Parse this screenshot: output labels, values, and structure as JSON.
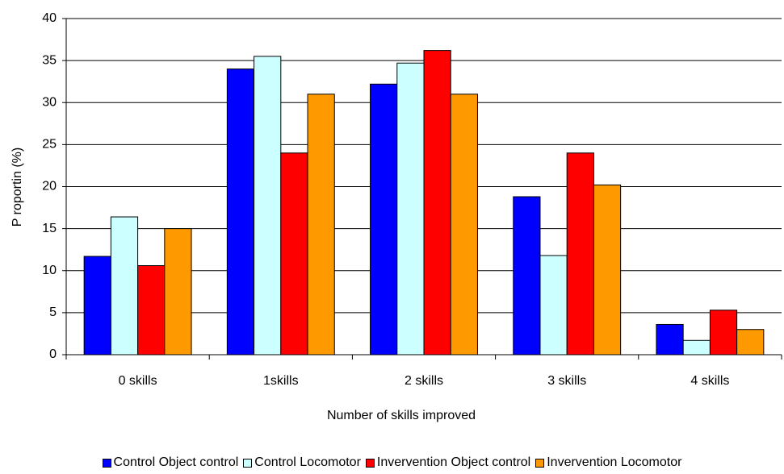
{
  "chart_data": {
    "type": "bar",
    "x_label": "Number of skills improved",
    "y_label": "P roportin (%)",
    "categories": [
      "0 skills",
      "1skills",
      "2 skills",
      "3 skills",
      "4 skills"
    ],
    "series": [
      {
        "name": "Control Object control",
        "color": "#0000ff",
        "values": [
          11.7,
          34.0,
          32.2,
          18.8,
          3.6
        ]
      },
      {
        "name": "Control Locomotor",
        "color": "#ccffff",
        "values": [
          16.4,
          35.5,
          34.7,
          11.8,
          1.7
        ]
      },
      {
        "name": "Invervention Object control",
        "color": "#ff0000",
        "values": [
          10.6,
          24.0,
          36.2,
          24.0,
          5.3
        ]
      },
      {
        "name": "Invervention Locomotor",
        "color": "#ff9900",
        "values": [
          15.0,
          31.0,
          31.0,
          20.2,
          3.0
        ]
      }
    ],
    "ylim": [
      0,
      40
    ],
    "yticks": [
      0,
      5,
      10,
      15,
      20,
      25,
      30,
      35,
      40
    ],
    "grid": true
  }
}
